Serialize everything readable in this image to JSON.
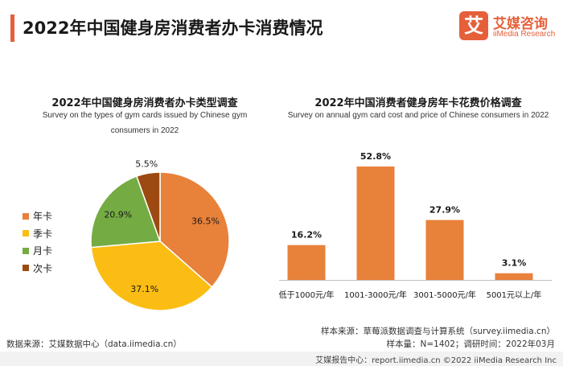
{
  "header": {
    "title": "2022年中国健身房消费者办卡消费情况"
  },
  "logo": {
    "mark": "艾",
    "name_cn": "艾媒咨询",
    "name_en": "iiMedia Research"
  },
  "colors": {
    "accent": "#e5603a",
    "orange": "#e8813a",
    "yellow": "#fbbd13",
    "green": "#74ac43",
    "brown": "#9c4a12"
  },
  "chart_data": [
    {
      "type": "pie",
      "title": "2022年中国健身房消费者办卡类型调查",
      "subtitle_lines": [
        "Survey on the types of gym cards issued by Chinese gym",
        "consumers in 2022"
      ],
      "labels": [
        "年卡",
        "季卡",
        "月卡",
        "次卡"
      ],
      "values": [
        36.5,
        37.1,
        20.9,
        5.5
      ],
      "value_labels": [
        "36.5%",
        "37.1%",
        "20.9%",
        "5.5%"
      ],
      "colors": [
        "#e8813a",
        "#fbbd13",
        "#74ac43",
        "#9c4a12"
      ],
      "legend": "left"
    },
    {
      "type": "bar",
      "title": "2022年中国消费者健身房年卡花费价格调查",
      "subtitle": "Survey on annual gym card cost and price of Chinese consumers in 2022",
      "categories": [
        "低于1000元/年",
        "1001-3000元/年",
        "3001-5000元/年",
        "5001元以上/年"
      ],
      "values": [
        16.2,
        52.8,
        27.9,
        3.1
      ],
      "value_labels": [
        "16.2%",
        "52.8%",
        "27.9%",
        "3.1%"
      ],
      "ylim": [
        0,
        52.8
      ],
      "grid": false,
      "color": "#e8813a"
    }
  ],
  "footer": {
    "source": "数据来源：艾媒数据中心（data.iimedia.cn）",
    "sample_source": "样本来源：草莓派数据调查与计算系统（survey.iimedia.cn）",
    "sample_size": "样本量：N=1402；调研时间：2022年03月",
    "bar_text": "艾媒报告中心：report.iimedia.cn    ©2022  iiMedia Research  Inc"
  }
}
